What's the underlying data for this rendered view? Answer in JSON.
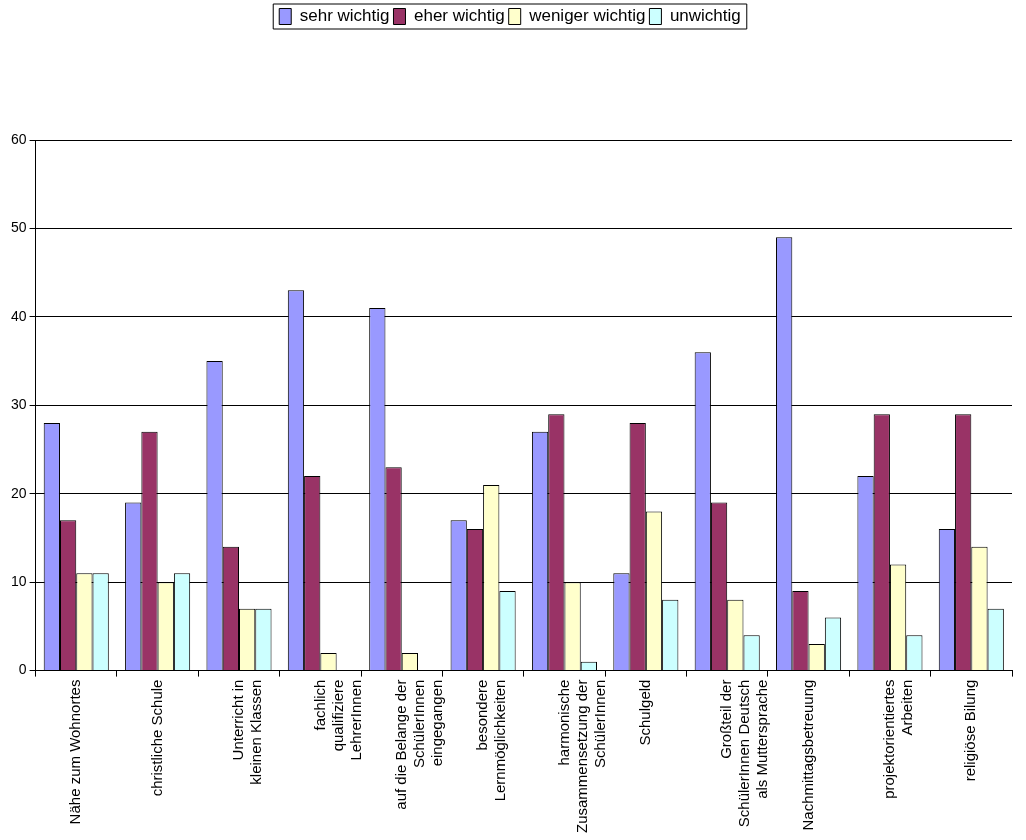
{
  "chart_data": {
    "type": "bar",
    "categories": [
      "Nähe zum Wohnortes",
      "christliche Schule",
      "Unterricht in kleinen Klassen",
      "fachlich qualifiziere LehrerInnen",
      "auf die Belange der SchülerInnen eingegangen",
      "besondere Lernmöglichkeiten",
      "harmonische Zusammensetzung der SchülerInnen",
      "Schulgeld",
      "Großteil der SchülerInnen Deutsch als Muttersprache",
      "Nachmittagsbetreuung",
      "projektorientiertes Arbeiten",
      "religiöse Bilung"
    ],
    "series": [
      {
        "name": "sehr wichtig",
        "color": "#9999ff",
        "values": [
          28,
          19,
          35,
          43,
          41,
          17,
          27,
          11,
          36,
          49,
          22,
          16
        ]
      },
      {
        "name": "eher wichtig",
        "color": "#993366",
        "values": [
          17,
          27,
          14,
          22,
          23,
          16,
          29,
          28,
          19,
          9,
          29,
          29
        ]
      },
      {
        "name": "weniger wichtig",
        "color": "#ffffcc",
        "values": [
          11,
          10,
          7,
          2,
          2,
          21,
          10,
          18,
          8,
          3,
          12,
          14
        ]
      },
      {
        "name": "unwichtig",
        "color": "#ccffff",
        "values": [
          11,
          11,
          7,
          0,
          0,
          9,
          1,
          8,
          4,
          6,
          4,
          7
        ]
      }
    ],
    "ylim": [
      0,
      60
    ],
    "yticks": [
      0,
      10,
      20,
      30,
      40,
      50,
      60
    ],
    "grid": "y",
    "legend": "top"
  }
}
